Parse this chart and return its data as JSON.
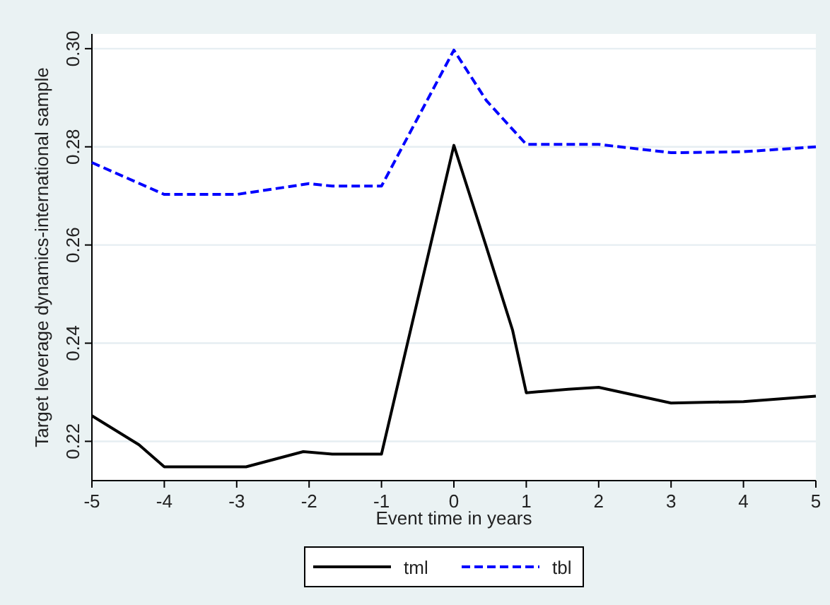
{
  "chart_data": {
    "type": "line",
    "xlabel": "Event time in years",
    "ylabel": "Target leverage dynamics-international sample",
    "xlim": [
      -5,
      5
    ],
    "xticks": [
      -5,
      -4,
      -3,
      -2,
      -1,
      0,
      1,
      2,
      3,
      4,
      5
    ],
    "ylim": [
      0.212,
      0.303
    ],
    "yticks": [
      {
        "value": 0.22,
        "label": "0.22"
      },
      {
        "value": 0.24,
        "label": "0.24"
      },
      {
        "value": 0.26,
        "label": "0.26"
      },
      {
        "value": 0.28,
        "label": "0.28"
      },
      {
        "value": 0.3,
        "label": "0.30"
      }
    ],
    "grid": "y",
    "legend": "bottom",
    "marker": "none",
    "series": [
      {
        "name": "tml",
        "color": "#000000",
        "line_style": "solid",
        "x": [
          -5,
          -4.35,
          -4,
          -3,
          -2.87,
          -2.08,
          -1.68,
          -1,
          0,
          0.44,
          0.81,
          1,
          1.58,
          2,
          3,
          4,
          5
        ],
        "values": [
          0.2252,
          0.2193,
          0.2148,
          0.2148,
          0.2148,
          0.2179,
          0.2174,
          0.2174,
          0.2803,
          0.26,
          0.2427,
          0.2299,
          0.2306,
          0.231,
          0.2278,
          0.2281,
          0.2292
        ]
      },
      {
        "name": "tbl",
        "color": "#0000ff",
        "line_style": "dashed",
        "x": [
          -5,
          -4,
          -3,
          -2,
          -1.68,
          -1,
          0,
          0.45,
          1,
          2,
          3,
          4,
          5
        ],
        "values": [
          0.2768,
          0.2703,
          0.2703,
          0.2725,
          0.272,
          0.272,
          0.2997,
          0.2894,
          0.2805,
          0.2805,
          0.2788,
          0.279,
          0.28
        ]
      }
    ]
  }
}
